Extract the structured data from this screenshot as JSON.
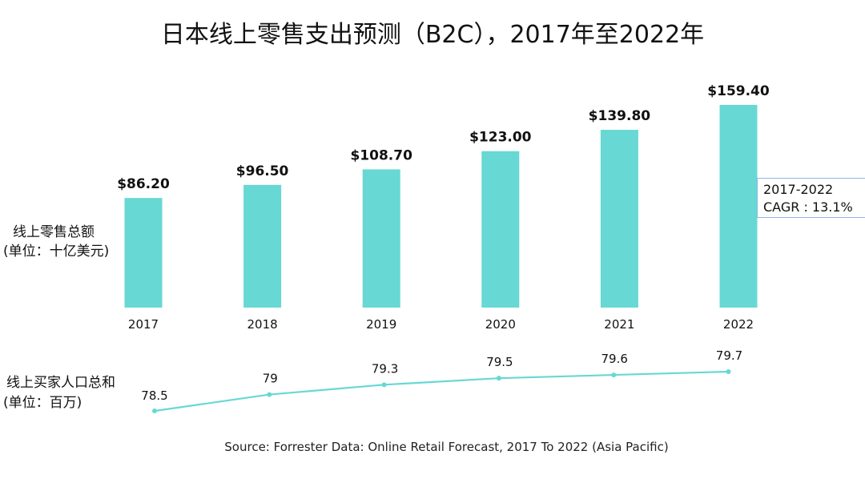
{
  "title": "日本线上零售支出预测（B2C），2017年至2022年",
  "colors": {
    "bar": "#67d8d4",
    "line": "#67d8d4"
  },
  "chart_data": [
    {
      "type": "bar",
      "ylabel_lines": [
        "线上零售总额",
        "(单位：十亿美元)"
      ],
      "categories": [
        "2017",
        "2018",
        "2019",
        "2020",
        "2021",
        "2022"
      ],
      "values": [
        86.2,
        96.5,
        108.7,
        123.0,
        139.8,
        159.4
      ],
      "value_labels": [
        "$86.20",
        "$96.50",
        "$108.70",
        "$123.00",
        "$139.80",
        "$159.40"
      ],
      "ylim": [
        0,
        160
      ],
      "grid": false,
      "annotation": {
        "line1": "2017-2022",
        "line2": "CAGR : 13.1%"
      }
    },
    {
      "type": "line",
      "ylabel_lines": [
        "线上买家人口总和",
        "(单位：百万)"
      ],
      "categories": [
        "2017",
        "2018",
        "2019",
        "2020",
        "2021",
        "2022"
      ],
      "values": [
        78.5,
        79,
        79.3,
        79.5,
        79.6,
        79.7
      ],
      "value_labels": [
        "78.5",
        "79",
        "79.3",
        "79.5",
        "79.6",
        "79.7"
      ],
      "ylim": [
        78.5,
        79.7
      ],
      "grid": false
    }
  ],
  "source": "Source: Forrester Data: Online Retail Forecast, 2017 To 2022 (Asia Pacific)"
}
